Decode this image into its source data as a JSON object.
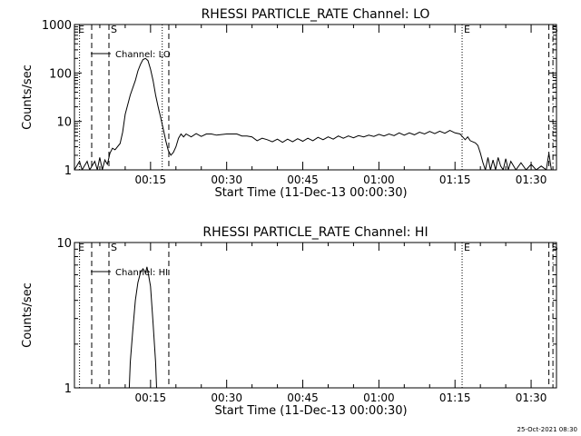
{
  "chart_data": [
    {
      "type": "line",
      "title": "RHESSI PARTICLE_RATE Channel: LO",
      "xlabel": "Start Time (11-Dec-13 00:00:30)",
      "ylabel": "Counts/sec",
      "yscale": "log",
      "ylim": [
        1,
        1000
      ],
      "xlim_minutes": [
        0,
        95
      ],
      "x_ticks": [
        {
          "label": "00:15",
          "minutes": 15
        },
        {
          "label": "00:30",
          "minutes": 30
        },
        {
          "label": "00:45",
          "minutes": 45
        },
        {
          "label": "01:00",
          "minutes": 60
        },
        {
          "label": "01:15",
          "minutes": 75
        },
        {
          "label": "01:30",
          "minutes": 90
        }
      ],
      "y_ticks": [
        {
          "label": "1",
          "value": 1
        },
        {
          "label": "10",
          "value": 10
        },
        {
          "label": "100",
          "value": 100
        },
        {
          "label": "1000",
          "value": 1000
        }
      ],
      "legend": {
        "label": "Channel: LO",
        "position": "top-left"
      },
      "markers": [
        {
          "label": "E",
          "minutes": 1.0,
          "style": "dotted",
          "label_pos": "left"
        },
        {
          "label": "",
          "minutes": 3.4,
          "style": "dashed"
        },
        {
          "label": "S",
          "minutes": 6.8,
          "style": "dashed",
          "label_pos": "right"
        },
        {
          "label": "",
          "minutes": 17.3,
          "style": "dotted"
        },
        {
          "label": "",
          "minutes": 18.6,
          "style": "dashed"
        },
        {
          "label": "E",
          "minutes": 76.4,
          "style": "dotted",
          "label_pos": "right"
        },
        {
          "label": "",
          "minutes": 93.5,
          "style": "dashed"
        },
        {
          "label": "S",
          "minutes": 94.3,
          "style": "dashdot",
          "label_pos": "left"
        }
      ],
      "series": [
        {
          "values": [
            [
              0.0,
              1.0
            ],
            [
              1.0,
              1.5
            ],
            [
              1.5,
              1.0
            ],
            [
              2.5,
              1.5
            ],
            [
              3.0,
              1.0
            ],
            [
              4.0,
              1.5
            ],
            [
              4.5,
              1.0
            ],
            [
              5.0,
              1.8
            ],
            [
              5.5,
              1.0
            ],
            [
              6.0,
              1.6
            ],
            [
              6.5,
              1.3
            ],
            [
              7.0,
              2.2
            ],
            [
              7.5,
              2.8
            ],
            [
              8.0,
              2.6
            ],
            [
              9.0,
              3.5
            ],
            [
              9.5,
              6
            ],
            [
              10.0,
              14
            ],
            [
              11.0,
              35
            ],
            [
              12.0,
              70
            ],
            [
              12.5,
              110
            ],
            [
              13.0,
              150
            ],
            [
              13.5,
              190
            ],
            [
              14.0,
              200
            ],
            [
              14.5,
              180
            ],
            [
              15.0,
              120
            ],
            [
              15.5,
              70
            ],
            [
              16.0,
              35
            ],
            [
              16.5,
              20
            ],
            [
              17.0,
              12
            ],
            [
              17.5,
              7
            ],
            [
              18.0,
              4
            ],
            [
              18.5,
              2.5
            ],
            [
              19.0,
              2.0
            ],
            [
              19.5,
              2.3
            ],
            [
              20.0,
              3
            ],
            [
              20.5,
              4.5
            ],
            [
              21.0,
              5.5
            ],
            [
              21.5,
              4.8
            ],
            [
              22.0,
              5.5
            ],
            [
              23.0,
              4.8
            ],
            [
              24.0,
              5.6
            ],
            [
              25.0,
              4.9
            ],
            [
              26.0,
              5.5
            ],
            [
              27.0,
              5.5
            ],
            [
              28.0,
              5.2
            ],
            [
              30.0,
              5.5
            ],
            [
              32.0,
              5.5
            ],
            [
              33.0,
              5.0
            ],
            [
              34.0,
              5.0
            ],
            [
              35.0,
              4.8
            ],
            [
              36.0,
              4.0
            ],
            [
              37.0,
              4.5
            ],
            [
              38.0,
              4.2
            ],
            [
              39.0,
              3.8
            ],
            [
              40.0,
              4.3
            ],
            [
              41.0,
              3.7
            ],
            [
              42.0,
              4.3
            ],
            [
              43.0,
              3.8
            ],
            [
              44.0,
              4.4
            ],
            [
              45.0,
              3.9
            ],
            [
              46.0,
              4.5
            ],
            [
              47.0,
              4.0
            ],
            [
              48.0,
              4.7
            ],
            [
              49.0,
              4.2
            ],
            [
              50.0,
              4.8
            ],
            [
              51.0,
              4.3
            ],
            [
              52.0,
              5.0
            ],
            [
              53.0,
              4.5
            ],
            [
              54.0,
              5.0
            ],
            [
              55.0,
              4.6
            ],
            [
              56.0,
              5.1
            ],
            [
              57.0,
              4.8
            ],
            [
              58.0,
              5.2
            ],
            [
              59.0,
              4.9
            ],
            [
              60.0,
              5.4
            ],
            [
              61.0,
              5.0
            ],
            [
              62.0,
              5.5
            ],
            [
              63.0,
              5.1
            ],
            [
              64.0,
              5.8
            ],
            [
              65.0,
              5.2
            ],
            [
              66.0,
              5.8
            ],
            [
              67.0,
              5.3
            ],
            [
              68.0,
              6.0
            ],
            [
              69.0,
              5.5
            ],
            [
              70.0,
              6.2
            ],
            [
              71.0,
              5.6
            ],
            [
              72.0,
              6.3
            ],
            [
              73.0,
              5.7
            ],
            [
              74.0,
              6.5
            ],
            [
              75.0,
              5.8
            ],
            [
              76.0,
              5.5
            ],
            [
              77.0,
              4.2
            ],
            [
              77.5,
              4.8
            ],
            [
              78.0,
              4.0
            ],
            [
              79.0,
              3.6
            ],
            [
              79.5,
              3.2
            ],
            [
              80.0,
              2.2
            ],
            [
              80.5,
              1.4
            ],
            [
              81.0,
              1.0
            ],
            [
              81.5,
              1.8
            ],
            [
              82.0,
              1.0
            ],
            [
              82.5,
              1.6
            ],
            [
              83.0,
              1.0
            ],
            [
              83.5,
              1.8
            ],
            [
              84.0,
              1.2
            ],
            [
              84.5,
              1.0
            ],
            [
              85.0,
              1.7
            ],
            [
              85.5,
              1.0
            ],
            [
              86.0,
              1.5
            ],
            [
              87.0,
              1.0
            ],
            [
              88.0,
              1.4
            ],
            [
              89.0,
              1.0
            ],
            [
              90.0,
              1.3
            ],
            [
              91.0,
              1.0
            ],
            [
              92.0,
              1.2
            ],
            [
              93.0,
              1.0
            ],
            [
              93.5,
              2.2
            ],
            [
              94.0,
              1.0
            ],
            [
              95.0,
              1.0
            ]
          ]
        }
      ]
    },
    {
      "type": "line",
      "title": "RHESSI PARTICLE_RATE Channel: HI",
      "xlabel": "Start Time (11-Dec-13 00:00:30)",
      "ylabel": "Counts/sec",
      "yscale": "log",
      "ylim": [
        1,
        10
      ],
      "xlim_minutes": [
        0,
        95
      ],
      "x_ticks": [
        {
          "label": "00:15",
          "minutes": 15
        },
        {
          "label": "00:30",
          "minutes": 30
        },
        {
          "label": "00:45",
          "minutes": 45
        },
        {
          "label": "01:00",
          "minutes": 60
        },
        {
          "label": "01:15",
          "minutes": 75
        },
        {
          "label": "01:30",
          "minutes": 90
        }
      ],
      "y_ticks": [
        {
          "label": "1",
          "value": 1
        },
        {
          "label": "10",
          "value": 10
        }
      ],
      "legend": {
        "label": "Channel: HI",
        "position": "top-left"
      },
      "markers": [
        {
          "label": "E",
          "minutes": 1.0,
          "style": "dotted",
          "label_pos": "left"
        },
        {
          "label": "",
          "minutes": 3.4,
          "style": "dashed"
        },
        {
          "label": "S",
          "minutes": 6.8,
          "style": "dashed",
          "label_pos": "right"
        },
        {
          "label": "",
          "minutes": 18.6,
          "style": "dashed"
        },
        {
          "label": "E",
          "minutes": 76.4,
          "style": "dotted",
          "label_pos": "right"
        },
        {
          "label": "",
          "minutes": 93.5,
          "style": "dashed"
        },
        {
          "label": "S",
          "minutes": 94.3,
          "style": "dashdot",
          "label_pos": "left"
        }
      ],
      "series": [
        {
          "values": [
            [
              10.8,
              1.0
            ],
            [
              11.0,
              1.5
            ],
            [
              11.5,
              2.5
            ],
            [
              12.0,
              4.0
            ],
            [
              12.5,
              5.3
            ],
            [
              13.0,
              6.2
            ],
            [
              13.5,
              6.6
            ],
            [
              14.0,
              6.2
            ],
            [
              14.3,
              6.8
            ],
            [
              14.6,
              6.0
            ],
            [
              15.0,
              5.0
            ],
            [
              15.5,
              2.8
            ],
            [
              16.0,
              1.5
            ],
            [
              16.2,
              1.0
            ]
          ]
        }
      ]
    }
  ],
  "timestamp": "25-Oct-2021 08:30"
}
